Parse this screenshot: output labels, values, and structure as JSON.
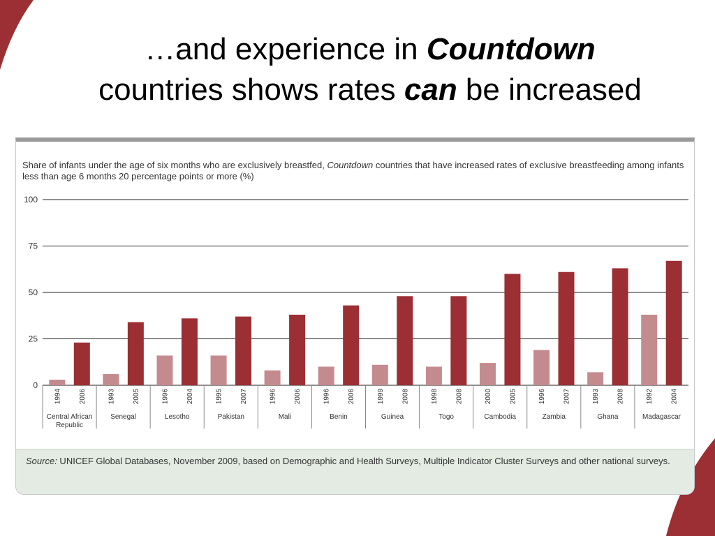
{
  "slide": {
    "title_line1_pre": "…and experience in ",
    "title_line1_em": "Countdown",
    "title_line2_pre": "countries shows rates ",
    "title_line2_em": "can",
    "title_line2_post": " be increased"
  },
  "colors": {
    "accent": "#9b2f34",
    "bar_early": "#c48b8f",
    "bar_late": "#9b2f34",
    "source_bg": "#e3ebe3"
  },
  "chart_data": {
    "type": "bar",
    "title_pre": "Share of infants under the age of six months who are exclusively breastfed, ",
    "title_em": "Countdown",
    "title_post": " countries that have increased rates of exclusive breastfeeding among infants less than age 6 months 20 percentage points or more (%)",
    "xlabel": "",
    "ylabel": "",
    "ylim": [
      0,
      100
    ],
    "yticks": [
      0,
      25,
      50,
      75,
      100
    ],
    "grid": true,
    "groups": [
      {
        "country": "Central African Republic",
        "bars": [
          {
            "year": "1994",
            "value": 3
          },
          {
            "year": "2006",
            "value": 23
          }
        ]
      },
      {
        "country": "Senegal",
        "bars": [
          {
            "year": "1993",
            "value": 6
          },
          {
            "year": "2005",
            "value": 34
          }
        ]
      },
      {
        "country": "Lesotho",
        "bars": [
          {
            "year": "1996",
            "value": 16
          },
          {
            "year": "2004",
            "value": 36
          }
        ]
      },
      {
        "country": "Pakistan",
        "bars": [
          {
            "year": "1995",
            "value": 16
          },
          {
            "year": "2007",
            "value": 37
          }
        ]
      },
      {
        "country": "Mali",
        "bars": [
          {
            "year": "1996",
            "value": 8
          },
          {
            "year": "2006",
            "value": 38
          }
        ]
      },
      {
        "country": "Benin",
        "bars": [
          {
            "year": "1996",
            "value": 10
          },
          {
            "year": "2006",
            "value": 43
          }
        ]
      },
      {
        "country": "Guinea",
        "bars": [
          {
            "year": "1999",
            "value": 11
          },
          {
            "year": "2008",
            "value": 48
          }
        ]
      },
      {
        "country": "Togo",
        "bars": [
          {
            "year": "1998",
            "value": 10
          },
          {
            "year": "2008",
            "value": 48
          }
        ]
      },
      {
        "country": "Cambodia",
        "bars": [
          {
            "year": "2000",
            "value": 12
          },
          {
            "year": "2005",
            "value": 60
          }
        ]
      },
      {
        "country": "Zambia",
        "bars": [
          {
            "year": "1996",
            "value": 19
          },
          {
            "year": "2007",
            "value": 61
          }
        ]
      },
      {
        "country": "Ghana",
        "bars": [
          {
            "year": "1993",
            "value": 7
          },
          {
            "year": "2008",
            "value": 63
          }
        ]
      },
      {
        "country": "Madagascar",
        "bars": [
          {
            "year": "1992",
            "value": 38
          },
          {
            "year": "2004",
            "value": 67
          }
        ]
      }
    ]
  },
  "source": {
    "label": "Source:",
    "text": " UNICEF Global Databases, November 2009, based on Demographic and Health Surveys, Multiple Indicator Cluster Surveys and other national surveys."
  }
}
